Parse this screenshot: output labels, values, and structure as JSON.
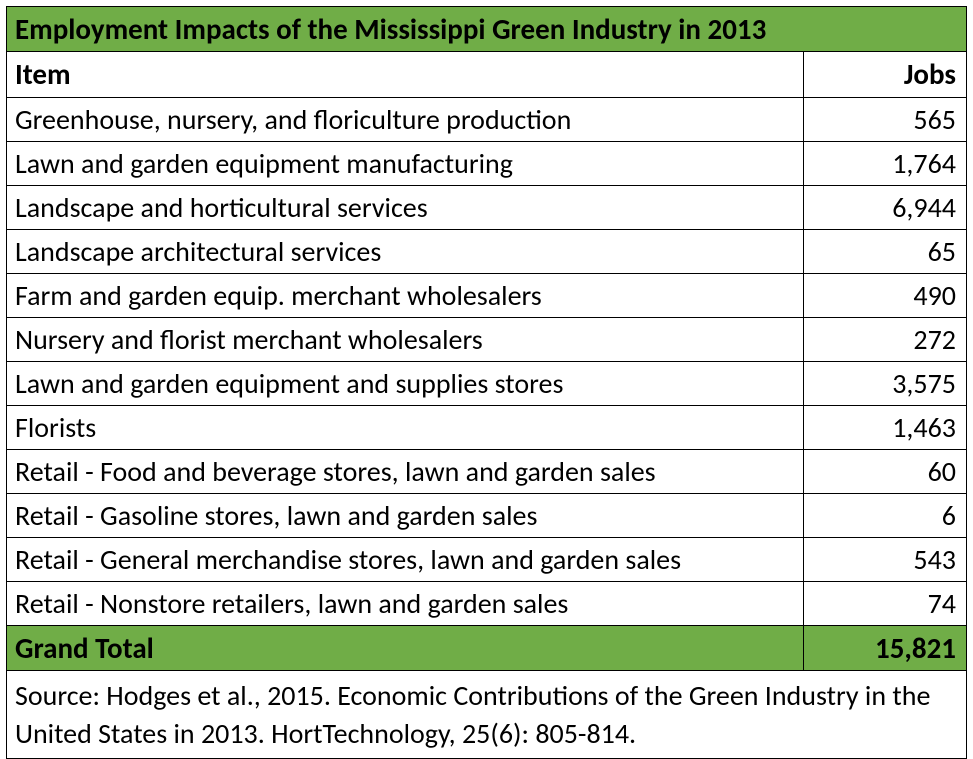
{
  "table": {
    "type": "table",
    "title": "Employment Impacts of the Mississippi Green Industry in 2013",
    "columns": [
      {
        "label": "Item",
        "align": "left"
      },
      {
        "label": "Jobs",
        "align": "right"
      }
    ],
    "rows": [
      {
        "item": "Greenhouse, nursery, and floriculture production",
        "jobs": "565"
      },
      {
        "item": "Lawn and garden equipment manufacturing",
        "jobs": "1,764"
      },
      {
        "item": "Landscape and horticultural services",
        "jobs": "6,944"
      },
      {
        "item": "Landscape architectural services",
        "jobs": "65"
      },
      {
        "item": "Farm and garden equip. merchant wholesalers",
        "jobs": "490"
      },
      {
        "item": "Nursery and florist merchant wholesalers",
        "jobs": "272"
      },
      {
        "item": "Lawn and garden equipment and supplies stores",
        "jobs": "3,575"
      },
      {
        "item": "Florists",
        "jobs": "1,463"
      },
      {
        "item": "Retail - Food and beverage stores, lawn and garden sales",
        "jobs": "60"
      },
      {
        "item": "Retail - Gasoline stores, lawn and garden sales",
        "jobs": "6"
      },
      {
        "item": "Retail - General merchandise stores, lawn and garden sales",
        "jobs": "543"
      },
      {
        "item": "Retail - Nonstore retailers, lawn and garden sales",
        "jobs": "74"
      }
    ],
    "total": {
      "label": "Grand Total",
      "jobs": "15,821"
    },
    "source": "Source: Hodges et al., 2015. Economic Contributions of the Green Industry in the United States in 2013. HortTechnology, 25(6): 805-814.",
    "style": {
      "highlight_bg": "#70ad47",
      "row_bg": "#ffffff",
      "border_color": "#000000",
      "text_color": "#000000",
      "font_family": "Calibri",
      "title_fontsize_pt": 22,
      "header_fontsize_pt": 22,
      "body_fontsize_pt": 21,
      "total_fontsize_pt": 22,
      "source_fontsize_pt": 21,
      "column_widths_pct": [
        83,
        17
      ]
    }
  }
}
